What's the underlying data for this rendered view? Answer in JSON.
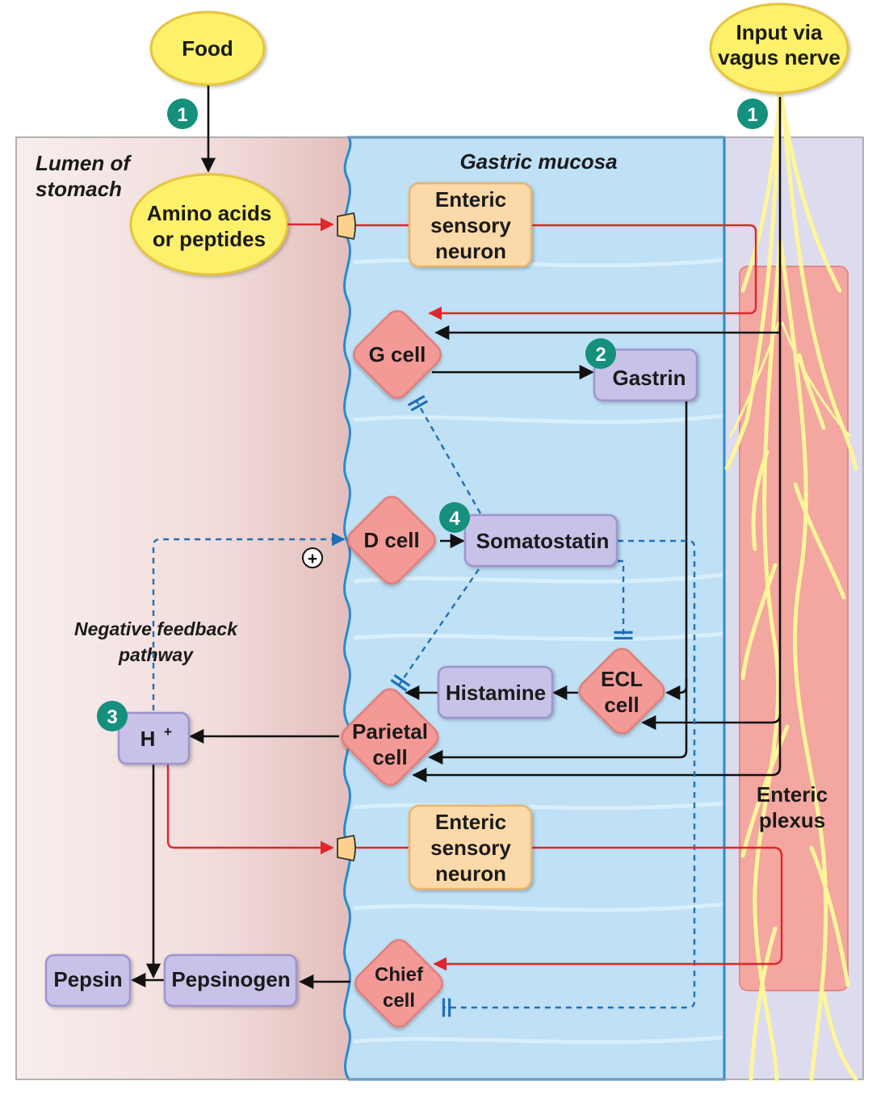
{
  "labels": {
    "food": "Food",
    "vagus_line1": "Input via",
    "vagus_line2": "vagus nerve",
    "lumen_line1": "Lumen of",
    "lumen_line2": "stomach",
    "gastric_mucosa": "Gastric mucosa",
    "amino_line1": "Amino acids",
    "amino_line2": "or peptides",
    "ens_line1": "Enteric",
    "ens_line2": "sensory",
    "ens_line3": "neuron",
    "g_cell": "G cell",
    "gastrin": "Gastrin",
    "d_cell": "D cell",
    "somatostatin": "Somatostatin",
    "neg_line1": "Negative feedback",
    "neg_line2": "pathway",
    "histamine": "Histamine",
    "ecl_line1": "ECL",
    "ecl_line2": "cell",
    "parietal_line1": "Parietal",
    "parietal_line2": "cell",
    "h_ion": "H",
    "h_ion_sup": "+",
    "plexus_line1": "Enteric",
    "plexus_line2": "plexus",
    "chief_line1": "Chief",
    "chief_line2": "cell",
    "pepsin": "Pepsin",
    "pepsinogen": "Pepsinogen",
    "plus_sign": "+"
  },
  "steps": {
    "food_step": "1",
    "vagus_step": "1",
    "gastrin_step": "2",
    "h_step": "3",
    "somatostatin_step": "4"
  },
  "colors": {
    "lumen": "#f0dcd9",
    "mucosa": "#bfe0f5",
    "mucosa_edge": "#2a8ad0",
    "plexus_region": "#dcdcee",
    "plexus": "#f4a6a0",
    "nerve": "#fff59a",
    "ellipse": "#fdf06a",
    "ellipse_stroke": "#e6c43c",
    "neuron": "#fcd9a8",
    "cell": "#f49a96",
    "chemical": "#c8c2e8",
    "step_badge": "#14907c",
    "stimulate": "#e0262b",
    "inhibit": "#1f6fb8"
  }
}
